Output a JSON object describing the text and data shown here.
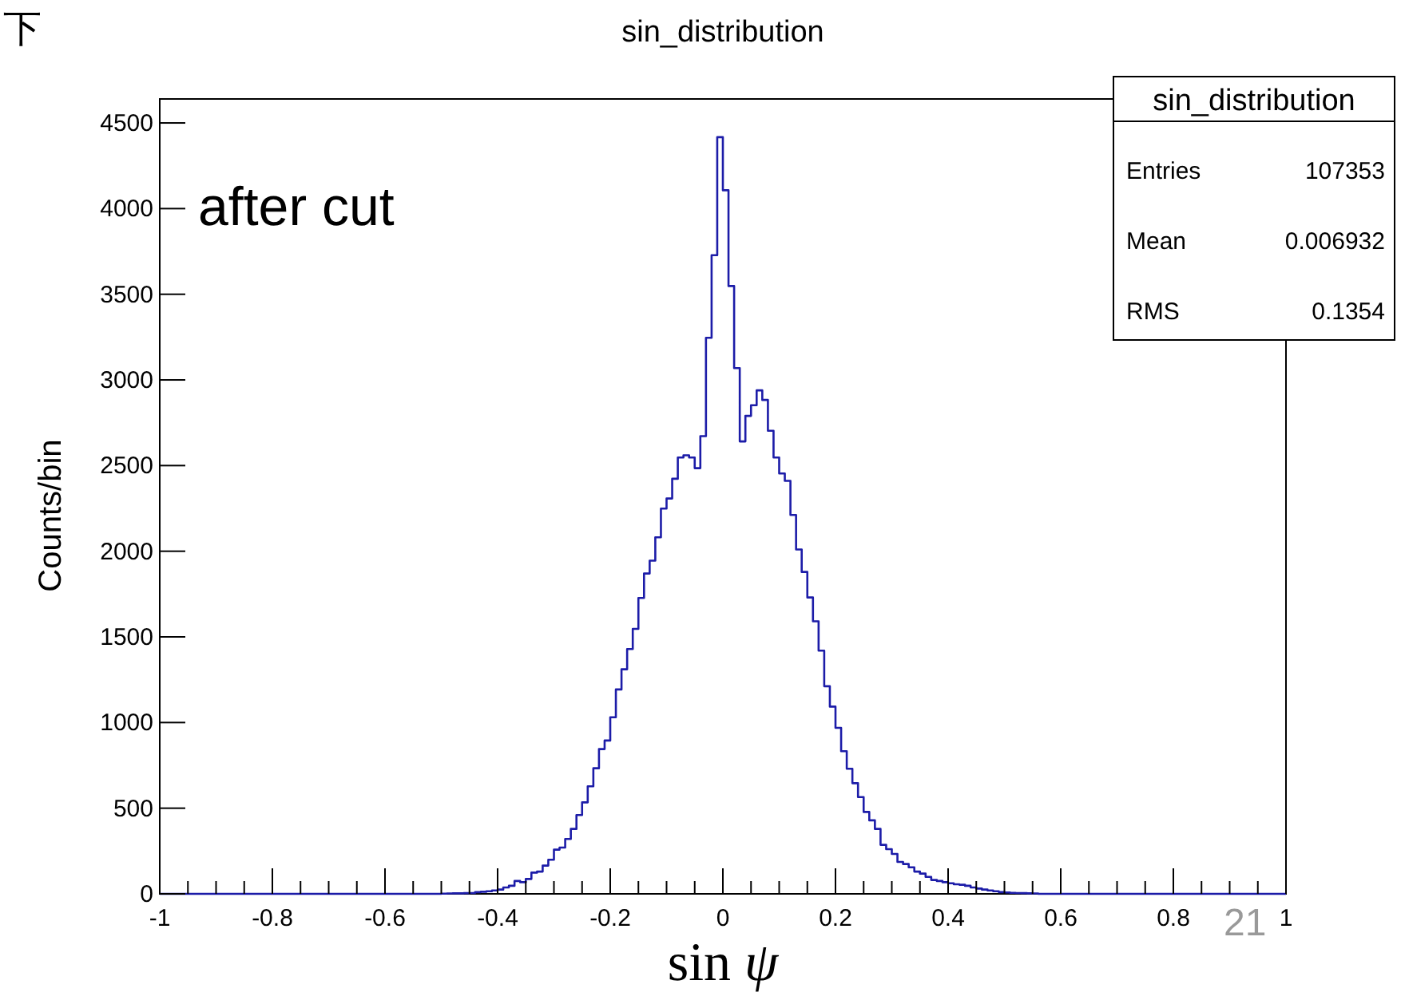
{
  "chart_data": {
    "type": "histogram",
    "title": "sin_distribution",
    "xlabel": "sin ψ",
    "ylabel": "Counts/bin",
    "color": "#1c1ca8",
    "annotations": [
      "after cut",
      "下",
      "21",
      "sin_distribution",
      "Entries",
      "107353",
      "Mean",
      "0.006932",
      "RMS",
      "0.1354"
    ],
    "bins": [
      -1,
      -0.99,
      -0.98,
      -0.97,
      -0.96,
      -0.95,
      -0.94,
      -0.93,
      -0.92,
      -0.91,
      -0.9,
      -0.89,
      -0.88,
      -0.87,
      -0.86,
      -0.85,
      -0.84,
      -0.83,
      -0.82,
      -0.81,
      -0.8,
      -0.79,
      -0.78,
      -0.77,
      -0.76,
      -0.75,
      -0.74,
      -0.73,
      -0.72,
      -0.71,
      -0.7,
      -0.69,
      -0.68,
      -0.67,
      -0.66,
      -0.65,
      -0.64,
      -0.63,
      -0.62,
      -0.61,
      -0.6,
      -0.59,
      -0.58,
      -0.57,
      -0.56,
      -0.55,
      -0.54,
      -0.53,
      -0.52,
      -0.51,
      -0.5,
      -0.49,
      -0.48,
      -0.47,
      -0.46,
      -0.45,
      -0.44,
      -0.43,
      -0.42,
      -0.41,
      -0.4,
      -0.39,
      -0.38,
      -0.37,
      -0.36,
      -0.35,
      -0.34,
      -0.33,
      -0.32,
      -0.31,
      -0.3,
      -0.29,
      -0.28,
      -0.27,
      -0.26,
      -0.25,
      -0.24,
      -0.23,
      -0.22,
      -0.21,
      -0.2,
      -0.19,
      -0.18,
      -0.17,
      -0.16,
      -0.15,
      -0.14,
      -0.13,
      -0.12,
      -0.11,
      -0.1,
      -0.09,
      -0.08,
      -0.07,
      -0.06,
      -0.05,
      -0.04,
      -0.03,
      -0.02,
      -0.01,
      0,
      0.01,
      0.02,
      0.03,
      0.04,
      0.05,
      0.06,
      0.07,
      0.08,
      0.09,
      0.1,
      0.11,
      0.12,
      0.13,
      0.14,
      0.15,
      0.16,
      0.17,
      0.18,
      0.19,
      0.2,
      0.21,
      0.22,
      0.23,
      0.24,
      0.25,
      0.26,
      0.27,
      0.28,
      0.29,
      0.3,
      0.31,
      0.32,
      0.33,
      0.34,
      0.35,
      0.36,
      0.37,
      0.38,
      0.39,
      0.4,
      0.41,
      0.42,
      0.43,
      0.44,
      0.45,
      0.46,
      0.47,
      0.48,
      0.49,
      0.5,
      0.51,
      0.52,
      0.53,
      0.54,
      0.55,
      0.56,
      0.57,
      0.58,
      0.59,
      0.6,
      0.61,
      0.62,
      0.63,
      0.64,
      0.65,
      0.66,
      0.67,
      0.68,
      0.69,
      0.7,
      0.71,
      0.72,
      0.73,
      0.74,
      0.75,
      0.76,
      0.77,
      0.78,
      0.79,
      0.8,
      0.81,
      0.82,
      0.83,
      0.84,
      0.85,
      0.86,
      0.87,
      0.88,
      0.89,
      0.9,
      0.91,
      0.92,
      0.93,
      0.94,
      0.95,
      0.96,
      0.97,
      0.98,
      0.99,
      1
    ],
    "values": [
      0,
      0,
      0,
      0,
      0,
      0,
      0,
      0,
      0,
      0,
      0,
      0,
      0,
      0,
      0,
      0,
      0,
      0,
      0,
      0,
      0,
      0,
      0,
      0,
      0,
      0,
      0,
      0,
      0,
      0,
      0,
      0,
      0,
      0,
      0,
      0,
      0,
      0,
      0,
      0,
      0,
      0,
      0,
      0,
      0,
      0,
      0,
      0,
      0,
      0,
      1,
      2,
      3,
      3,
      4,
      5,
      10,
      12,
      15,
      20,
      25,
      37,
      47,
      75,
      68,
      87,
      124,
      130,
      165,
      199,
      258,
      270,
      320,
      379,
      460,
      534,
      628,
      733,
      845,
      895,
      1031,
      1193,
      1311,
      1429,
      1547,
      1727,
      1870,
      1945,
      2081,
      2249,
      2308,
      2423,
      2547,
      2560,
      2547,
      2485,
      2672,
      3246,
      3728,
      4417,
      4107,
      3548,
      3069,
      2641,
      2790,
      2852,
      2939,
      2883,
      2703,
      2547,
      2454,
      2411,
      2212,
      2010,
      1879,
      1730,
      1591,
      1420,
      1212,
      1093,
      969,
      833,
      730,
      646,
      565,
      478,
      429,
      379,
      286,
      261,
      233,
      186,
      174,
      155,
      130,
      118,
      99,
      81,
      75,
      68,
      62,
      56,
      53,
      47,
      37,
      31,
      25,
      20,
      15,
      10,
      8,
      6,
      5,
      4,
      3,
      2,
      0,
      0,
      0,
      0,
      0,
      0,
      0,
      0,
      0,
      0,
      0,
      0,
      0,
      0,
      0,
      0,
      0,
      0,
      0,
      0,
      0,
      0,
      0,
      0,
      0,
      0,
      0,
      0,
      0,
      0,
      0,
      0,
      0,
      0,
      0,
      0,
      0,
      0,
      0,
      0,
      0,
      0,
      0,
      0
    ],
    "xlim": [
      -1,
      1
    ],
    "ylim": [
      0,
      4640
    ],
    "xticks": [
      -1,
      {
        "value": -0.95,
        "label": null
      },
      {
        "value": -0.9,
        "label": null
      },
      {
        "value": -0.85,
        "label": null
      },
      -0.8,
      {
        "value": -0.75,
        "label": null
      },
      {
        "value": -0.7,
        "label": null
      },
      {
        "value": -0.65,
        "label": null
      },
      -0.6,
      {
        "value": -0.55,
        "label": null
      },
      {
        "value": -0.5,
        "label": null
      },
      {
        "value": -0.45,
        "label": null
      },
      -0.4,
      {
        "value": -0.35,
        "label": null
      },
      {
        "value": -0.3,
        "label": null
      },
      {
        "value": -0.25,
        "label": null
      },
      -0.2,
      {
        "value": -0.15,
        "label": null
      },
      {
        "value": -0.1,
        "label": null
      },
      {
        "value": -0.05,
        "label": null
      },
      0,
      {
        "value": 0.05,
        "label": null
      },
      {
        "value": 0.1,
        "label": null
      },
      {
        "value": 0.15,
        "label": null
      },
      0.2,
      {
        "value": 0.25,
        "label": null
      },
      {
        "value": 0.3,
        "label": null
      },
      {
        "value": 0.35,
        "label": null
      },
      0.4,
      {
        "value": 0.45,
        "label": null
      },
      {
        "value": 0.5,
        "label": null
      },
      {
        "value": 0.55,
        "label": null
      },
      0.6,
      {
        "value": 0.65,
        "label": null
      },
      {
        "value": 0.7,
        "label": null
      },
      {
        "value": 0.75,
        "label": null
      },
      0.8,
      {
        "value": 0.85,
        "label": null
      },
      {
        "value": 0.9,
        "label": null
      },
      {
        "value": 0.95,
        "label": null
      },
      1
    ],
    "yticks": [
      0,
      500,
      1000,
      1500,
      2000,
      2500,
      3000,
      3500,
      4000,
      4500
    ]
  }
}
